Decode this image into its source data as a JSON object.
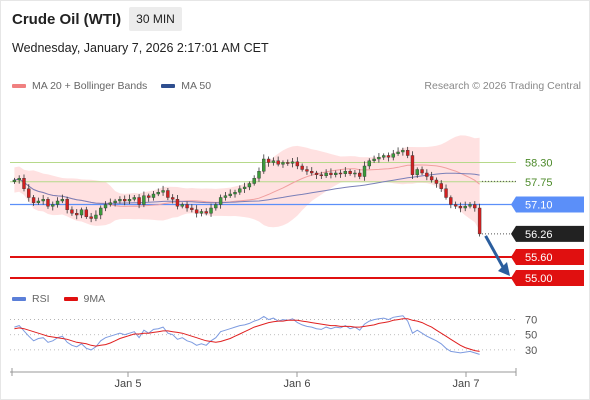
{
  "header": {
    "title": "Crude Oil (WTI)",
    "timeframe": "30 MIN"
  },
  "timestamp": "Wednesday, January 7, 2026 2:17:01 AM CET",
  "legend": {
    "bollinger_label": "MA 20 + Bollinger Bands",
    "ma50_label": "MA 50",
    "credit": "Research © 2026 Trading Central",
    "rsi_label": "RSI",
    "rsi_ma_label": "9MA"
  },
  "colors": {
    "candle_up": "#3a9a3a",
    "candle_down": "#d32020",
    "bollinger_band": "#ffdcdc",
    "ma20": "#f0a0a0",
    "ma50": "#7a7fb8",
    "resistance": "#b6d98a",
    "current_level": "#5b8ff9",
    "support": "#e01010",
    "last_price_box": "#222222",
    "arrow": "#2b5e9e",
    "rsi": "#7d9be0",
    "rsi_ma": "#e02020"
  },
  "chart_data": {
    "type": "candlestick",
    "x_ticks": [
      "Jan 5",
      "Jan 6",
      "Jan 7"
    ],
    "price_levels": [
      {
        "value": 58.3,
        "label": "58.30",
        "kind": "resistance"
      },
      {
        "value": 57.75,
        "label": "57.75",
        "kind": "resistance"
      },
      {
        "value": 57.1,
        "label": "57.10",
        "kind": "pivot"
      },
      {
        "value": 56.26,
        "label": "56.26",
        "kind": "last"
      },
      {
        "value": 55.6,
        "label": "55.60",
        "kind": "support"
      },
      {
        "value": 55.0,
        "label": "55.00",
        "kind": "support"
      }
    ],
    "ylim": [
      54.8,
      60.2
    ],
    "close": [
      57.8,
      57.85,
      57.55,
      57.3,
      57.15,
      57.2,
      57.25,
      57.05,
      57.1,
      57.2,
      57.25,
      56.95,
      56.85,
      56.8,
      56.95,
      56.75,
      56.7,
      56.8,
      57.0,
      57.1,
      57.15,
      57.2,
      57.25,
      57.2,
      57.25,
      57.3,
      57.1,
      57.35,
      57.3,
      57.4,
      57.45,
      57.5,
      57.3,
      57.25,
      57.05,
      57.1,
      57.0,
      56.95,
      56.85,
      56.9,
      56.85,
      57.0,
      57.1,
      57.3,
      57.35,
      57.4,
      57.45,
      57.55,
      57.6,
      57.7,
      57.85,
      58.05,
      58.4,
      58.3,
      58.35,
      58.25,
      58.3,
      58.28,
      58.32,
      58.2,
      58.1,
      58.05,
      58.0,
      57.95,
      57.92,
      58.0,
      57.95,
      58.0,
      57.98,
      58.05,
      57.98,
      58.0,
      57.9,
      58.2,
      58.35,
      58.4,
      58.45,
      58.5,
      58.45,
      58.55,
      58.6,
      58.65,
      58.5,
      57.95,
      58.1,
      58.0,
      57.9,
      57.8,
      57.7,
      57.55,
      57.3,
      57.1,
      57.05,
      57.0,
      57.05,
      57.1,
      57.0,
      56.26
    ],
    "open_offset_note": "",
    "rsi": {
      "levels": [
        70,
        50,
        30
      ],
      "ylim": [
        10,
        80
      ],
      "values": [
        60,
        62,
        55,
        48,
        42,
        45,
        46,
        40,
        42,
        46,
        48,
        40,
        36,
        34,
        38,
        32,
        30,
        34,
        42,
        46,
        48,
        50,
        52,
        50,
        52,
        54,
        46,
        56,
        52,
        57,
        58,
        60,
        52,
        50,
        44,
        46,
        42,
        40,
        36,
        38,
        36,
        42,
        46,
        54,
        56,
        58,
        60,
        62,
        63,
        65,
        68,
        70,
        74,
        70,
        72,
        68,
        70,
        69,
        71,
        66,
        63,
        61,
        60,
        58,
        57,
        60,
        58,
        60,
        59,
        62,
        58,
        60,
        56,
        64,
        68,
        70,
        71,
        72,
        70,
        73,
        74,
        75,
        68,
        52,
        56,
        52,
        48,
        45,
        42,
        38,
        32,
        28,
        27,
        26,
        27,
        28,
        26,
        24
      ],
      "ma_values": [
        58,
        59,
        58,
        56,
        54,
        52,
        50,
        48,
        47,
        46,
        45,
        44,
        42,
        40,
        39,
        38,
        36,
        35,
        36,
        37,
        39,
        42,
        45,
        47,
        49,
        51,
        51,
        52,
        52,
        53,
        54,
        55,
        55,
        54,
        53,
        52,
        50,
        48,
        46,
        44,
        42,
        41,
        40,
        41,
        43,
        45,
        48,
        51,
        54,
        57,
        60,
        62,
        64,
        66,
        67,
        68,
        68,
        69,
        69,
        69,
        68,
        67,
        66,
        65,
        64,
        63,
        62,
        62,
        61,
        61,
        61,
        60,
        60,
        61,
        62,
        63,
        65,
        66,
        67,
        69,
        70,
        71,
        71,
        69,
        68,
        66,
        63,
        60,
        56,
        52,
        48,
        44,
        40,
        36,
        33,
        31,
        29,
        28
      ]
    }
  }
}
